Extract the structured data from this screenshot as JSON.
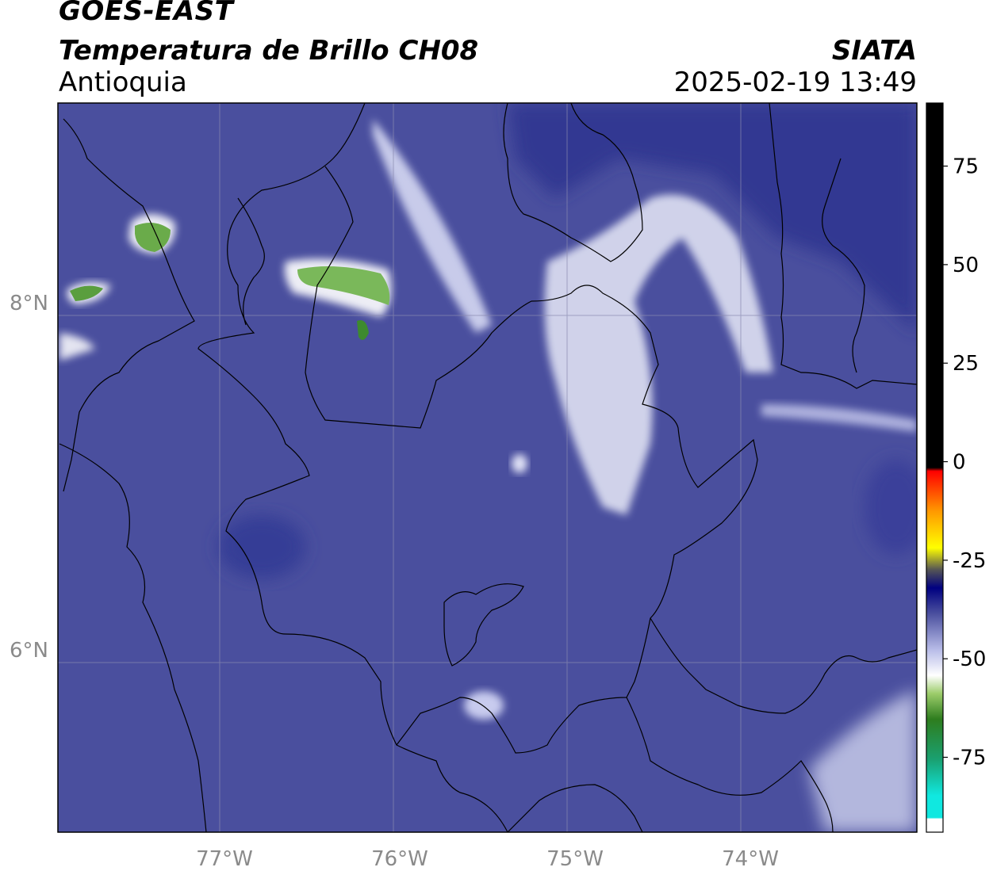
{
  "header": {
    "satellite": "GOES-EAST",
    "product": "Temperatura de Brillo CH08",
    "region": "Antioquia",
    "organization": "SIATA",
    "timestamp": "2025-02-19 13:49"
  },
  "map": {
    "extent": {
      "lon_min": -77.95,
      "lon_max": -73.05,
      "lat_min": 4.95,
      "lat_max": 9.15
    },
    "lon_ticks": [
      {
        "value": -77,
        "label": "77°W"
      },
      {
        "value": -76,
        "label": "76°W"
      },
      {
        "value": -75,
        "label": "75°W"
      },
      {
        "value": -74,
        "label": "74°W"
      }
    ],
    "lat_ticks": [
      {
        "value": 8,
        "label": "8°N"
      },
      {
        "value": 6,
        "label": "6°N"
      }
    ],
    "background_color": "#4a4f9e"
  },
  "colorbar": {
    "min": -94,
    "max": 91,
    "ticks": [
      {
        "value": 75,
        "label": "75"
      },
      {
        "value": 50,
        "label": "50"
      },
      {
        "value": 25,
        "label": "25"
      },
      {
        "value": 0,
        "label": "0"
      },
      {
        "value": -25,
        "label": "-25"
      },
      {
        "value": -50,
        "label": "-50"
      },
      {
        "value": -75,
        "label": "-75"
      }
    ]
  }
}
